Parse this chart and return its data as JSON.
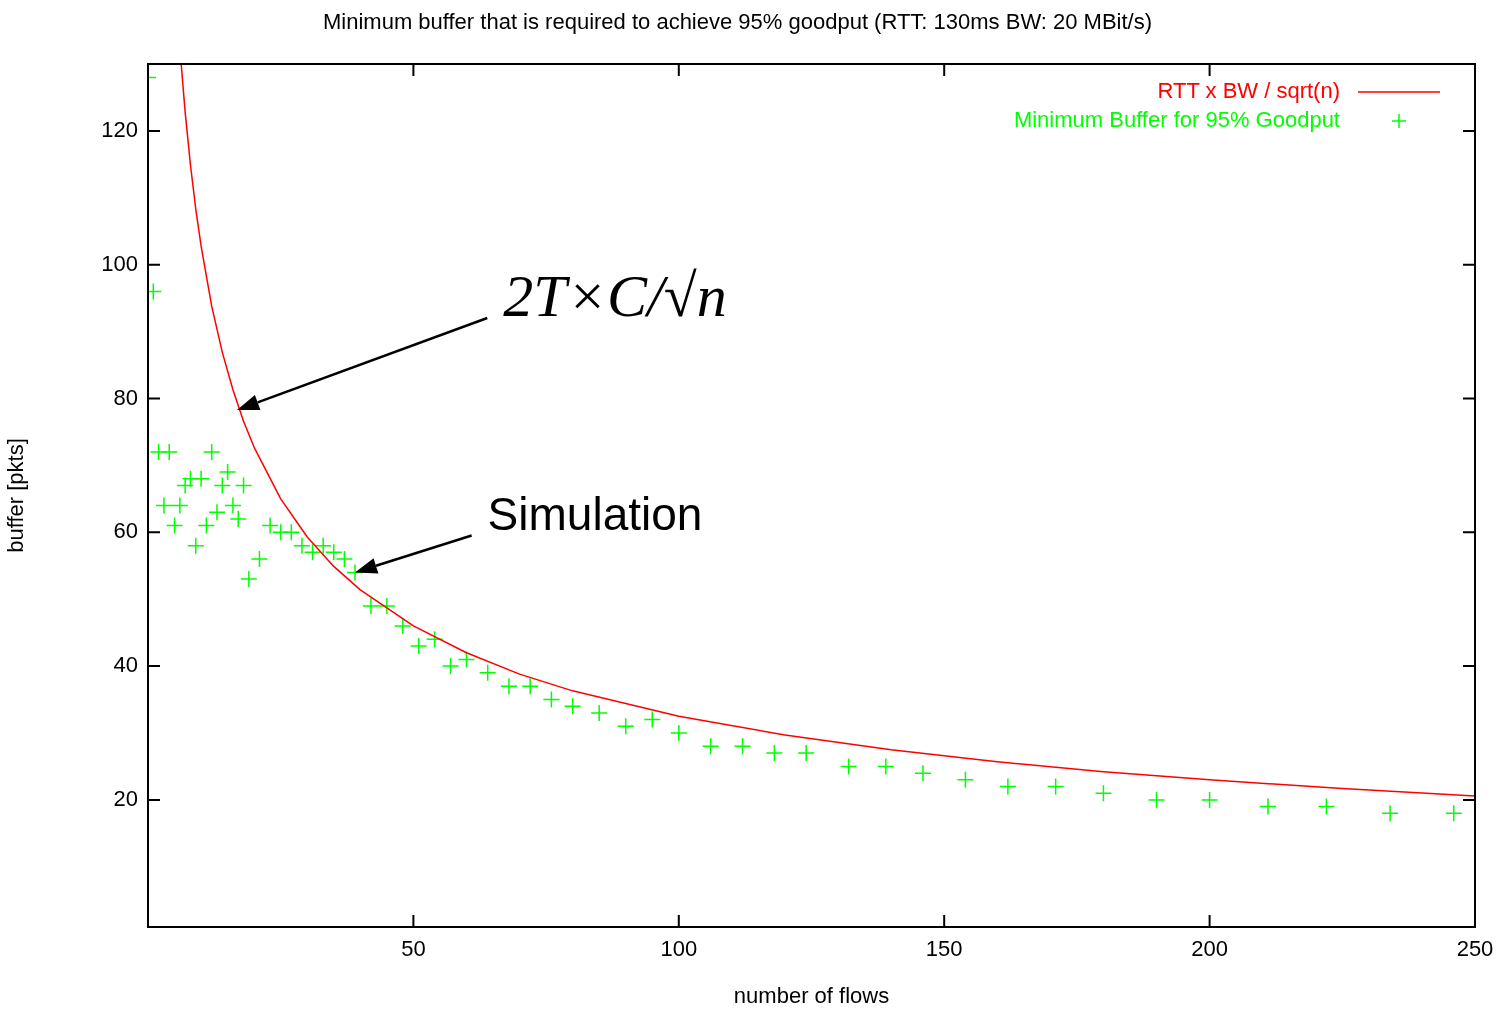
{
  "chart_data": {
    "type": "scatter",
    "title": "Minimum buffer that is required to achieve 95% goodput (RTT: 130ms BW: 20 MBit/s)",
    "xlabel": "number of flows",
    "ylabel": "buffer [pkts]",
    "xlim": [
      0,
      250
    ],
    "xticks": [
      50,
      100,
      150,
      200,
      250
    ],
    "ylim": [
      1,
      130
    ],
    "yticks": [
      20,
      40,
      60,
      80,
      100,
      120
    ],
    "grid": false,
    "legend": "top right",
    "series": [
      {
        "name": "RTT x BW / sqrt(n)",
        "type": "line",
        "color": "#ff0000",
        "x": [
          6.25,
          7,
          8,
          9,
          10,
          12,
          14,
          16,
          18,
          20,
          25,
          30,
          35,
          40,
          50,
          60,
          70,
          80,
          100,
          120,
          140,
          160,
          180,
          200,
          225,
          250
        ],
        "values": [
          130,
          122.8,
          114.9,
          108.3,
          102.8,
          93.8,
          86.9,
          81.3,
          76.6,
          72.7,
          65,
          59.3,
          54.9,
          51.4,
          46,
          42,
          38.8,
          36.3,
          32.5,
          29.7,
          27.5,
          25.7,
          24.2,
          23,
          21.7,
          20.6
        ]
      },
      {
        "name": "Minimum Buffer for 95% Goodput",
        "marker": "cross",
        "color": "#00ff00",
        "x": [
          0,
          1,
          2,
          4,
          3,
          6,
          5,
          7,
          8,
          10,
          9,
          11,
          12,
          13,
          14,
          15,
          16,
          17,
          18,
          19,
          21,
          23,
          25,
          27,
          29,
          31,
          33,
          35,
          37,
          39,
          42,
          45,
          48,
          51,
          54,
          57,
          60,
          64,
          68,
          72,
          76,
          80,
          85,
          90,
          95,
          100,
          106,
          112,
          118,
          124,
          132,
          139,
          146,
          154,
          162,
          171,
          180,
          190,
          200,
          211,
          222,
          234,
          246
        ],
        "values": [
          128,
          96,
          72,
          72,
          64,
          64,
          61,
          67,
          68,
          68,
          58,
          61,
          72,
          63,
          67,
          69,
          64,
          62,
          67,
          53,
          56,
          61,
          60,
          60,
          58,
          57,
          58,
          57,
          56,
          54,
          49,
          49,
          46,
          43,
          44,
          40,
          41,
          39,
          37,
          37,
          35,
          34,
          33,
          31,
          32,
          30,
          28,
          28,
          27,
          27,
          25,
          25,
          24,
          23,
          22,
          22,
          21,
          20,
          20,
          19,
          19,
          18,
          18
        ]
      }
    ],
    "annotations": [
      "2T×C/√n",
      {
        "text": "Simulation",
        "x": 39,
        "y": 54
      }
    ]
  }
}
